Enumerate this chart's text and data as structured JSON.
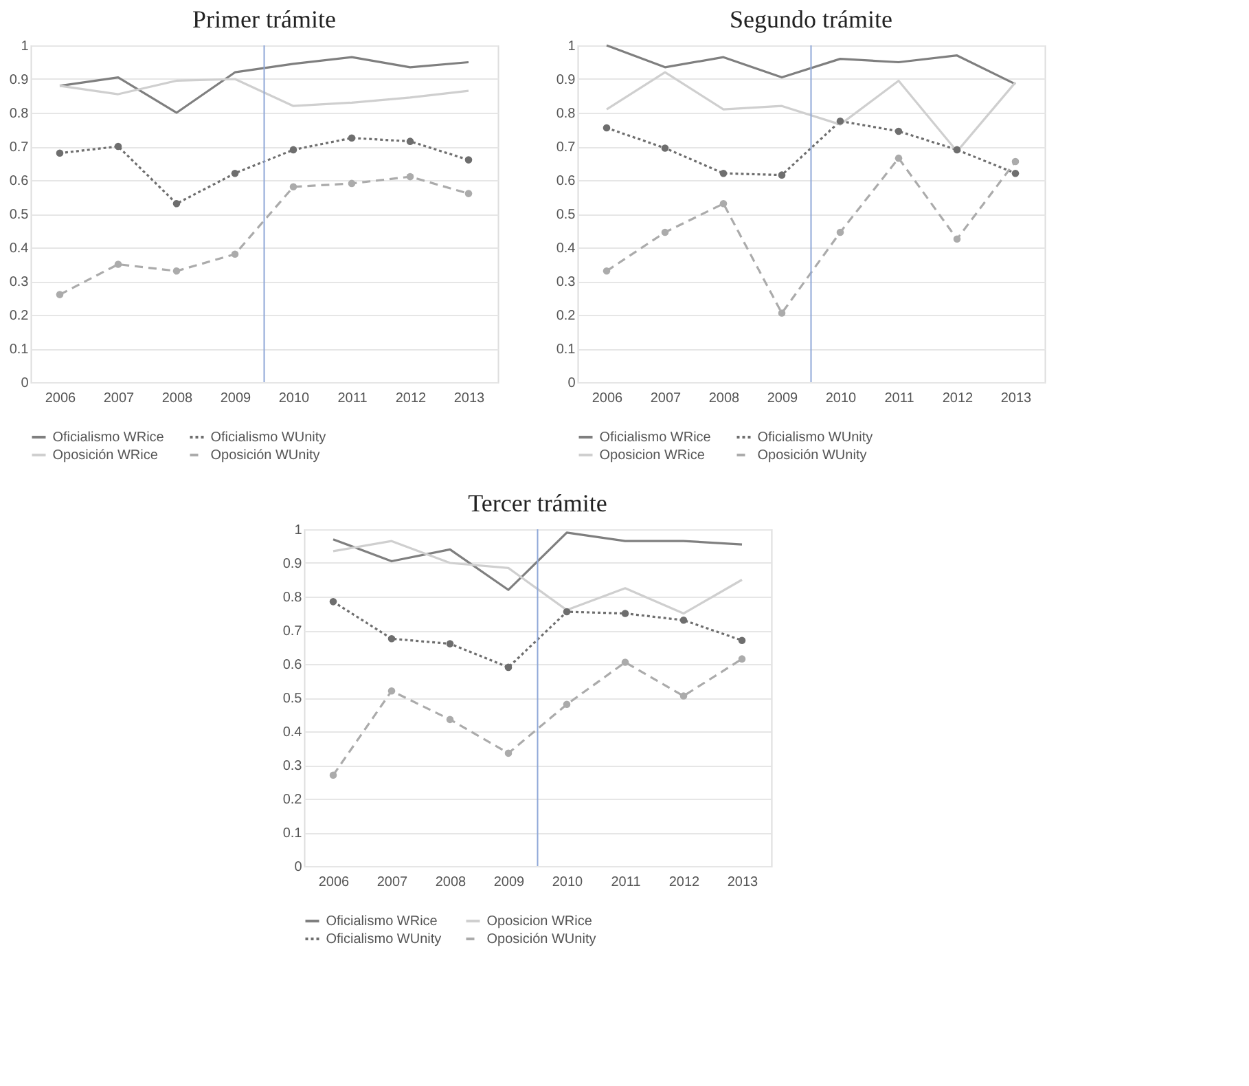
{
  "chart_data": [
    {
      "type": "line",
      "title": "Primer trámite",
      "x": [
        2006,
        2007,
        2008,
        2009,
        2010,
        2011,
        2012,
        2013
      ],
      "xlim": [
        2005.5,
        2013.5
      ],
      "xticks": [
        2006,
        2007,
        2008,
        2009,
        2010,
        2011,
        2012,
        2013
      ],
      "ylim": [
        0,
        1
      ],
      "yticks": [
        0,
        0.1,
        0.2,
        0.3,
        0.4,
        0.5,
        0.6,
        0.7,
        0.8,
        0.9,
        1
      ],
      "grid": "y",
      "legend": "bottom",
      "ref_lines": [
        {
          "axis": "x",
          "value": 2009.5,
          "color": "#8fa8d8"
        }
      ],
      "series": [
        {
          "name": "Oficialismo WRice",
          "color": "#7f7f7f",
          "line_style": "solid",
          "marker": "none",
          "values": [
            0.88,
            0.905,
            0.8,
            0.92,
            0.945,
            0.965,
            0.935,
            0.95
          ]
        },
        {
          "name": "Oficialismo WUnity",
          "color": "#6e6e6e",
          "line_style": "dotted",
          "marker": "circle",
          "values": [
            0.68,
            0.7,
            0.53,
            0.62,
            0.69,
            0.725,
            0.715,
            0.66
          ]
        },
        {
          "name": "Oposición WRice",
          "color": "#cfcfcf",
          "line_style": "solid",
          "marker": "none",
          "values": [
            0.88,
            0.855,
            0.895,
            0.9,
            0.82,
            0.83,
            0.845,
            0.865
          ]
        },
        {
          "name": "Oposición WUnity",
          "color": "#ababab",
          "line_style": "dashed",
          "marker": "circle",
          "values": [
            0.26,
            0.35,
            0.33,
            0.38,
            0.58,
            0.59,
            0.61,
            0.56
          ]
        }
      ]
    },
    {
      "type": "line",
      "title": "Segundo trámite",
      "x": [
        2006,
        2007,
        2008,
        2009,
        2010,
        2011,
        2012,
        2013
      ],
      "xlim": [
        2005.5,
        2013.5
      ],
      "xticks": [
        2006,
        2007,
        2008,
        2009,
        2010,
        2011,
        2012,
        2013
      ],
      "ylim": [
        0,
        1
      ],
      "yticks": [
        0,
        0.1,
        0.2,
        0.3,
        0.4,
        0.5,
        0.6,
        0.7,
        0.8,
        0.9,
        1
      ],
      "grid": "y",
      "legend": "bottom",
      "ref_lines": [
        {
          "axis": "x",
          "value": 2009.5,
          "color": "#8fa8d8"
        }
      ],
      "series": [
        {
          "name": "Oficialismo WRice",
          "color": "#7f7f7f",
          "line_style": "solid",
          "marker": "none",
          "values": [
            1.0,
            0.935,
            0.965,
            0.905,
            0.96,
            0.95,
            0.97,
            0.885
          ]
        },
        {
          "name": "Oficialismo WUnity",
          "color": "#6e6e6e",
          "line_style": "dotted",
          "marker": "circle",
          "values": [
            0.755,
            0.695,
            0.62,
            0.615,
            0.775,
            0.745,
            0.69,
            0.62
          ]
        },
        {
          "name": "Oposicion WRice",
          "color": "#cfcfcf",
          "line_style": "solid",
          "marker": "none",
          "values": [
            0.81,
            0.92,
            0.81,
            0.82,
            0.765,
            0.895,
            0.685,
            0.89
          ]
        },
        {
          "name": "Oposición WUnity",
          "color": "#ababab",
          "line_style": "dashed",
          "marker": "circle",
          "values": [
            0.33,
            0.445,
            0.53,
            0.205,
            0.445,
            0.665,
            0.425,
            0.655
          ]
        }
      ]
    },
    {
      "type": "line",
      "title": "Tercer trámite",
      "x": [
        2006,
        2007,
        2008,
        2009,
        2010,
        2011,
        2012,
        2013
      ],
      "xlim": [
        2005.5,
        2013.5
      ],
      "xticks": [
        2006,
        2007,
        2008,
        2009,
        2010,
        2011,
        2012,
        2013
      ],
      "ylim": [
        0,
        1
      ],
      "yticks": [
        0,
        0.1,
        0.2,
        0.3,
        0.4,
        0.5,
        0.6,
        0.7,
        0.8,
        0.9,
        1
      ],
      "grid": "y",
      "legend": "bottom",
      "ref_lines": [
        {
          "axis": "x",
          "value": 2009.5,
          "color": "#8fa8d8"
        }
      ],
      "series": [
        {
          "name": "Oficialismo WRice",
          "color": "#7f7f7f",
          "line_style": "solid",
          "marker": "none",
          "values": [
            0.97,
            0.905,
            0.94,
            0.82,
            0.99,
            0.965,
            0.965,
            0.955
          ]
        },
        {
          "name": "Oposicion WRice",
          "color": "#cfcfcf",
          "line_style": "solid",
          "marker": "none",
          "values": [
            0.935,
            0.965,
            0.9,
            0.885,
            0.76,
            0.825,
            0.75,
            0.85
          ]
        },
        {
          "name": "Oficialismo WUnity",
          "color": "#6e6e6e",
          "line_style": "dotted",
          "marker": "circle",
          "values": [
            0.785,
            0.675,
            0.66,
            0.59,
            0.755,
            0.75,
            0.73,
            0.67
          ]
        },
        {
          "name": "Oposición WUnity",
          "color": "#ababab",
          "line_style": "dashed",
          "marker": "circle",
          "values": [
            0.27,
            0.52,
            0.435,
            0.335,
            0.48,
            0.605,
            0.505,
            0.615
          ]
        }
      ]
    }
  ]
}
